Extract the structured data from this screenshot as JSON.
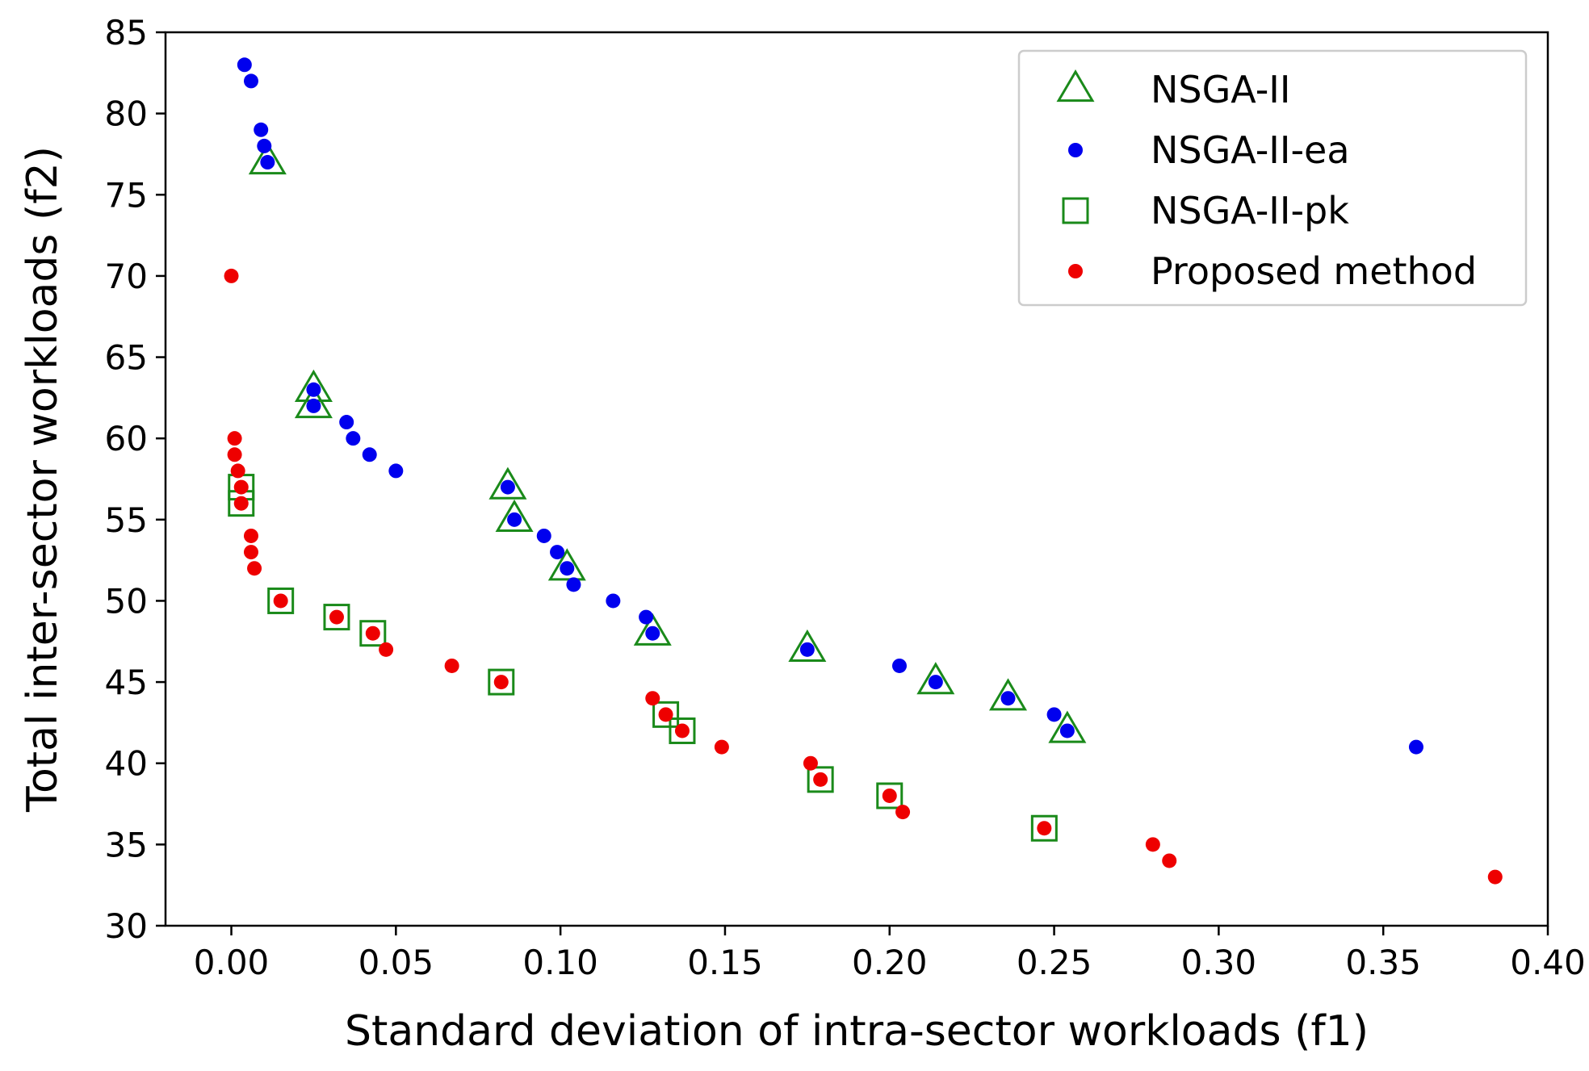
{
  "chart_data": {
    "type": "scatter",
    "title": "",
    "xlabel": "Standard deviation of intra-sector workloads (f1)",
    "ylabel": "Total inter-sector workloads (f2)",
    "xlim": [
      -0.02,
      0.4
    ],
    "ylim": [
      30,
      85
    ],
    "xticks": [
      0.0,
      0.05,
      0.1,
      0.15,
      0.2,
      0.25,
      0.3,
      0.35,
      0.4
    ],
    "xtick_labels": [
      "0.00",
      "0.05",
      "0.10",
      "0.15",
      "0.20",
      "0.25",
      "0.30",
      "0.35",
      "0.40"
    ],
    "yticks": [
      30,
      35,
      40,
      45,
      50,
      55,
      60,
      65,
      70,
      75,
      80,
      85
    ],
    "ytick_labels": [
      "30",
      "35",
      "40",
      "45",
      "50",
      "55",
      "60",
      "65",
      "70",
      "75",
      "80",
      "85"
    ],
    "grid": false,
    "legend_position": "top-right",
    "series": [
      {
        "name": "NSGA-II",
        "marker": "triangle-open",
        "color": "#1a8a1a",
        "points": [
          [
            0.011,
            77
          ],
          [
            0.025,
            63
          ],
          [
            0.025,
            62
          ],
          [
            0.084,
            57
          ],
          [
            0.086,
            55
          ],
          [
            0.102,
            52
          ],
          [
            0.128,
            48
          ],
          [
            0.175,
            47
          ],
          [
            0.214,
            45
          ],
          [
            0.236,
            44
          ],
          [
            0.254,
            42
          ]
        ]
      },
      {
        "name": "NSGA-II-ea",
        "marker": "dot",
        "color": "#0000ee",
        "points": [
          [
            0.004,
            83
          ],
          [
            0.006,
            82
          ],
          [
            0.009,
            79
          ],
          [
            0.01,
            78
          ],
          [
            0.011,
            77
          ],
          [
            0.025,
            63
          ],
          [
            0.025,
            62
          ],
          [
            0.035,
            61
          ],
          [
            0.037,
            60
          ],
          [
            0.042,
            59
          ],
          [
            0.05,
            58
          ],
          [
            0.084,
            57
          ],
          [
            0.086,
            55
          ],
          [
            0.095,
            54
          ],
          [
            0.099,
            53
          ],
          [
            0.102,
            52
          ],
          [
            0.104,
            51
          ],
          [
            0.116,
            50
          ],
          [
            0.126,
            49
          ],
          [
            0.128,
            48
          ],
          [
            0.175,
            47
          ],
          [
            0.203,
            46
          ],
          [
            0.214,
            45
          ],
          [
            0.236,
            44
          ],
          [
            0.25,
            43
          ],
          [
            0.254,
            42
          ],
          [
            0.36,
            41
          ]
        ]
      },
      {
        "name": "NSGA-II-pk",
        "marker": "square-open",
        "color": "#1a8a1a",
        "points": [
          [
            0.003,
            57
          ],
          [
            0.003,
            56
          ],
          [
            0.015,
            50
          ],
          [
            0.032,
            49
          ],
          [
            0.043,
            48
          ],
          [
            0.082,
            45
          ],
          [
            0.132,
            43
          ],
          [
            0.137,
            42
          ],
          [
            0.179,
            39
          ],
          [
            0.2,
            38
          ],
          [
            0.247,
            36
          ]
        ]
      },
      {
        "name": "Proposed method",
        "marker": "dot",
        "color": "#ee0000",
        "points": [
          [
            0.0,
            70
          ],
          [
            0.001,
            60
          ],
          [
            0.001,
            59
          ],
          [
            0.002,
            58
          ],
          [
            0.003,
            57
          ],
          [
            0.003,
            56
          ],
          [
            0.006,
            54
          ],
          [
            0.006,
            53
          ],
          [
            0.007,
            52
          ],
          [
            0.015,
            50
          ],
          [
            0.032,
            49
          ],
          [
            0.043,
            48
          ],
          [
            0.047,
            47
          ],
          [
            0.067,
            46
          ],
          [
            0.082,
            45
          ],
          [
            0.128,
            44
          ],
          [
            0.132,
            43
          ],
          [
            0.137,
            42
          ],
          [
            0.149,
            41
          ],
          [
            0.176,
            40
          ],
          [
            0.179,
            39
          ],
          [
            0.2,
            38
          ],
          [
            0.204,
            37
          ],
          [
            0.247,
            36
          ],
          [
            0.28,
            35
          ],
          [
            0.285,
            34
          ],
          [
            0.384,
            33
          ]
        ]
      }
    ]
  }
}
